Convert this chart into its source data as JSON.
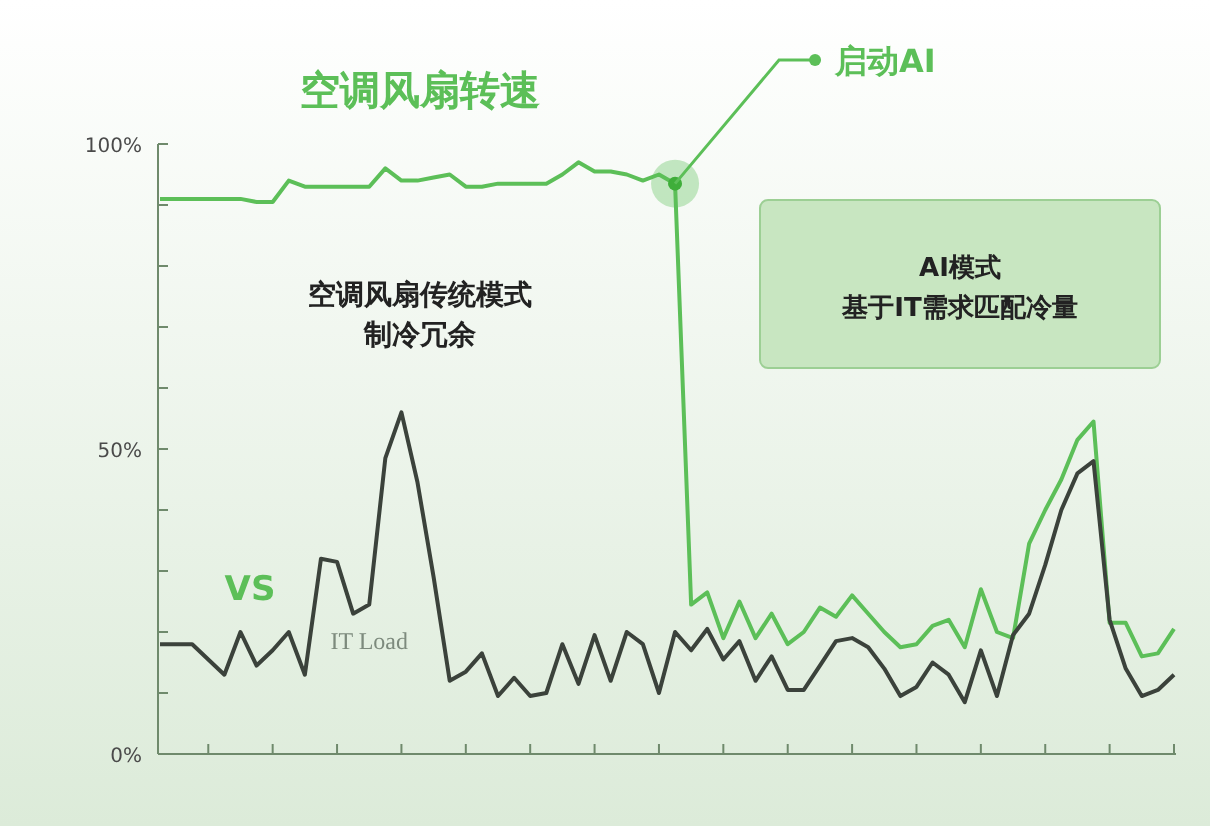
{
  "chart_data": {
    "type": "line",
    "title": "空调风扇转速",
    "categories": [
      null,
      null,
      null,
      null,
      null,
      null,
      null,
      null,
      null,
      null,
      null,
      null,
      null,
      null,
      null,
      null,
      null,
      null,
      null,
      null,
      null,
      null,
      null,
      null,
      null,
      null,
      null,
      null,
      null,
      null,
      null,
      null,
      null,
      null,
      null,
      null,
      null,
      null,
      null,
      null,
      null,
      null,
      null,
      null,
      null,
      null,
      null,
      null,
      null,
      null,
      null,
      null,
      null,
      null,
      null,
      null,
      null,
      null,
      null,
      null,
      null,
      null,
      null,
      null
    ],
    "series": [
      {
        "color": "#5cbf58",
        "values": [
          91,
          91,
          91,
          91,
          91,
          91,
          90.5,
          90.5,
          94,
          93,
          93,
          93,
          93,
          93,
          96,
          94,
          94,
          94.5,
          95,
          93,
          93,
          93.5,
          93.5,
          93.5,
          93.5,
          95,
          97,
          95.5,
          95.5,
          95,
          94,
          95,
          93.5,
          24.5,
          26.5,
          19,
          25,
          19,
          23,
          18,
          20,
          24,
          22.5,
          26,
          23,
          20,
          17.5,
          18,
          21,
          22,
          17.5,
          27,
          20,
          19,
          34.5,
          40,
          45,
          51.5,
          54.5,
          21.5,
          21.5,
          16,
          16.5,
          20.5
        ]
      },
      {
        "name": "IT Load",
        "color": "#3b423b",
        "values": [
          18,
          18,
          18,
          15.5,
          13,
          20,
          14.5,
          17,
          20,
          13,
          32,
          31.5,
          23,
          24.5,
          48.5,
          56,
          44.5,
          29,
          12,
          13.5,
          16.5,
          9.5,
          12.5,
          9.5,
          10,
          18,
          11.5,
          19.5,
          12,
          20,
          18,
          10,
          20,
          17,
          20.5,
          15.5,
          18.5,
          12,
          16,
          10.5,
          10.5,
          14.5,
          18.5,
          19,
          17.5,
          14,
          9.5,
          11,
          15,
          13,
          8.5,
          17,
          9.5,
          19.5,
          23,
          31,
          40,
          46,
          48,
          22,
          14,
          9.5,
          10.5,
          13
        ]
      }
    ],
    "ylim": [
      0,
      100
    ],
    "yticks": [
      {
        "value": 0,
        "label": "0%"
      },
      {
        "value": 10,
        "label": null
      },
      {
        "value": 20,
        "label": null
      },
      {
        "value": 30,
        "label": null
      },
      {
        "value": 40,
        "label": null
      },
      {
        "value": 50,
        "label": "50%"
      },
      {
        "value": 60,
        "label": null
      },
      {
        "value": 70,
        "label": null
      },
      {
        "value": 80,
        "label": null
      },
      {
        "value": 90,
        "label": null
      },
      {
        "value": 100,
        "label": "100%"
      }
    ],
    "tick_labels": "y",
    "annotations": [
      "启动AI",
      "空调风扇传统模式",
      "制冷冗余",
      "AI模式",
      "基于IT需求匹配冷量",
      "VS"
    ]
  }
}
